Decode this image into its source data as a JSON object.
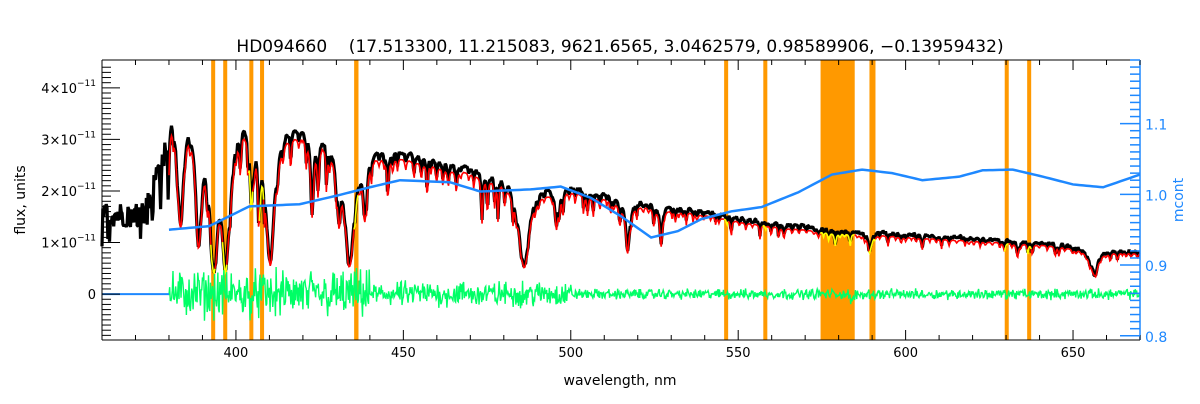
{
  "chart_data": {
    "type": "line",
    "title": "HD094660    (17.513300, 11.215083, 9621.6565, 3.0462579, 0.98589906, −0.13959432)",
    "xlabel": "wavelength, nm",
    "ylabel": "flux, units",
    "y2label": "mcont",
    "xlim": [
      360,
      670
    ],
    "ylim": [
      -8.9e-12,
      4.54e-11
    ],
    "y2lim": [
      0.794,
      1.19
    ],
    "x_ticks": [
      400,
      450,
      500,
      550,
      600,
      650
    ],
    "y_ticks": [
      {
        "value": 0,
        "label": "0"
      },
      {
        "value": 1e-11,
        "label": "1×10",
        "exp": "−11"
      },
      {
        "value": 2e-11,
        "label": "2×10",
        "exp": "−11"
      },
      {
        "value": 3e-11,
        "label": "3×10",
        "exp": "−11"
      },
      {
        "value": 4e-11,
        "label": "4×10",
        "exp": "−11"
      }
    ],
    "y2_ticks": [
      "0.8",
      "0.9",
      "1.0",
      "1.1"
    ],
    "colors": {
      "observed": "#000000",
      "model": "#ff0000",
      "model_masked": "#ffff00",
      "residual": "#00ff66",
      "mcont": "#1e88ff",
      "mask": "#ff9900",
      "right_axis": "#1e88ff"
    },
    "masked_regions_nm": [
      [
        392.6,
        393.8
      ],
      [
        396.2,
        397.4
      ],
      [
        404.0,
        405.2
      ],
      [
        407.2,
        408.4
      ],
      [
        435.3,
        436.6
      ],
      [
        545.8,
        547.0
      ],
      [
        557.5,
        558.7
      ],
      [
        574.6,
        584.8
      ],
      [
        589.2,
        591.0
      ],
      [
        629.6,
        630.8
      ],
      [
        636.3,
        637.5
      ]
    ],
    "observed_flux_continuum": {
      "wavelength_nm": [
        360,
        370,
        373,
        376,
        379,
        381,
        383,
        386,
        389,
        392,
        395,
        398,
        402,
        406,
        409,
        412,
        420,
        430,
        436,
        440,
        450,
        460,
        470,
        480,
        486,
        490,
        500,
        510,
        520,
        530,
        540,
        550,
        560,
        570,
        580,
        600,
        620,
        640,
        660,
        670
      ],
      "flux": [
        1.55e-11,
        1.55e-11,
        1.6e-11,
        2.3e-11,
        2.9e-11,
        3.8e-11,
        3.4e-11,
        3.95e-11,
        3.8e-11,
        3.7e-11,
        3.7e-11,
        3.5e-11,
        3.6e-11,
        3.4e-11,
        3.3e-11,
        3.4e-11,
        3.2e-11,
        3.05e-11,
        2.95e-11,
        2.85e-11,
        2.74e-11,
        2.6e-11,
        2.45e-11,
        2.3e-11,
        2.2e-11,
        2.12e-11,
        2.06e-11,
        1.93e-11,
        1.8e-11,
        1.7e-11,
        1.6e-11,
        1.47e-11,
        1.38e-11,
        1.3e-11,
        1.24e-11,
        1.16e-11,
        1.08e-11,
        1e-11,
        8.8e-12,
        8.2e-12
      ]
    },
    "absorption_lines": [
      {
        "nm": 383.5,
        "depth": 0.6,
        "width": 1.0
      },
      {
        "nm": 388.9,
        "depth": 0.7,
        "width": 1.2
      },
      {
        "nm": 393.4,
        "depth": 0.85,
        "width": 1.4
      },
      {
        "nm": 396.9,
        "depth": 0.85,
        "width": 1.5
      },
      {
        "nm": 404.6,
        "depth": 0.45,
        "width": 0.5
      },
      {
        "nm": 407.0,
        "depth": 0.4,
        "width": 0.5
      },
      {
        "nm": 410.2,
        "depth": 0.8,
        "width": 1.6
      },
      {
        "nm": 422.7,
        "depth": 0.5,
        "width": 0.5
      },
      {
        "nm": 430.8,
        "depth": 0.45,
        "width": 0.6
      },
      {
        "nm": 434.0,
        "depth": 0.8,
        "width": 1.8
      },
      {
        "nm": 438.4,
        "depth": 0.4,
        "width": 0.5
      },
      {
        "nm": 486.1,
        "depth": 0.75,
        "width": 1.8
      },
      {
        "nm": 495.7,
        "depth": 0.35,
        "width": 0.5
      },
      {
        "nm": 517.0,
        "depth": 0.45,
        "width": 0.8
      },
      {
        "nm": 527.0,
        "depth": 0.4,
        "width": 0.5
      },
      {
        "nm": 589.2,
        "depth": 0.3,
        "width": 0.6
      },
      {
        "nm": 656.3,
        "depth": 0.55,
        "width": 1.5
      }
    ],
    "residual": {
      "wavelength_range_nm": [
        380,
        670
      ],
      "center": 0,
      "scatter": [
        {
          "from": 380,
          "to": 440,
          "amp": 5.5e-12
        },
        {
          "from": 440,
          "to": 500,
          "amp": 3e-12
        },
        {
          "from": 500,
          "to": 670,
          "amp": 1.2e-12
        }
      ]
    },
    "mcont": {
      "wavelength_nm": [
        380,
        392,
        404,
        419,
        430,
        440,
        449,
        464,
        473,
        488,
        497,
        506,
        515,
        524,
        532,
        539,
        548,
        557,
        568,
        578,
        587,
        596,
        605,
        616,
        623,
        632,
        641,
        650,
        659,
        670
      ],
      "value": [
        0.95,
        0.955,
        0.983,
        0.986,
        0.998,
        1.01,
        1.02,
        1.017,
        1.004,
        1.007,
        1.011,
        0.995,
        0.969,
        0.939,
        0.948,
        0.965,
        0.976,
        0.982,
        1.003,
        1.028,
        1.035,
        1.03,
        1.02,
        1.025,
        1.034,
        1.035,
        1.025,
        1.014,
        1.01,
        1.028
      ]
    }
  }
}
